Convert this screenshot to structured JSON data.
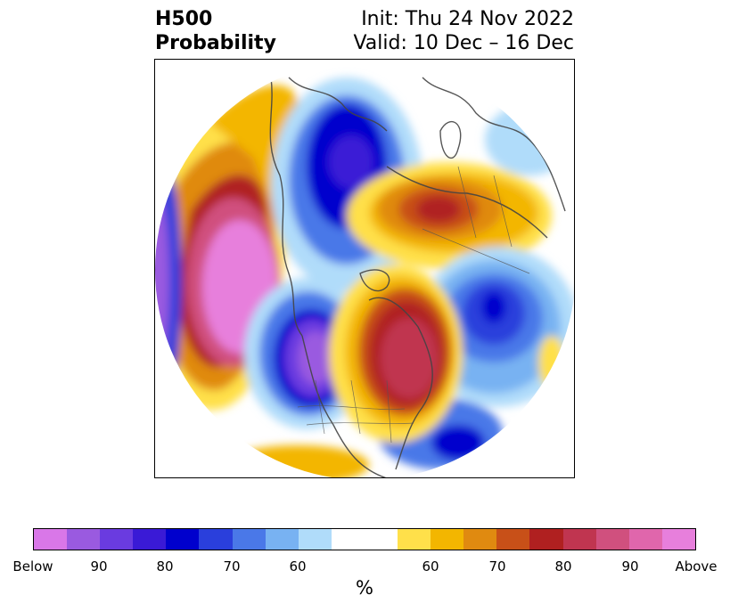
{
  "title": {
    "left_line1": "H500",
    "left_line2": "Probability",
    "right_line1": "Init: Thu 24 Nov 2022",
    "right_line2": "Valid: 10 Dec – 16 Dec"
  },
  "colorbar": {
    "colors": [
      "#d977e8",
      "#9a5ae0",
      "#6a3be0",
      "#3a1ad6",
      "#0000cd",
      "#2a3fdc",
      "#4a78e8",
      "#78b2f2",
      "#b0dcfa",
      "#ffffff",
      "#ffe04a",
      "#f3b600",
      "#e08a10",
      "#c85018",
      "#b02020",
      "#c03550",
      "#d0507e",
      "#e066ac",
      "#e77fdc"
    ],
    "tick_labels": [
      "Below",
      "90",
      "80",
      "70",
      "60",
      "60",
      "70",
      "80",
      "90",
      "Above"
    ],
    "unit_label": "%"
  },
  "map": {
    "projection": "north-polar-orthographic",
    "features": [
      "coastlines",
      "country-borders",
      "state-borders"
    ],
    "anomalies": [
      {
        "region": "northeast-pacific",
        "sign": "above",
        "peak": "Above"
      },
      {
        "region": "western-north-america",
        "sign": "below",
        "peak": "90"
      },
      {
        "region": "eastern-north-america",
        "sign": "above",
        "peak": "90"
      },
      {
        "region": "arctic-canada-greenland",
        "sign": "below",
        "peak": "80"
      },
      {
        "region": "north-atlantic",
        "sign": "below",
        "peak": "80"
      },
      {
        "region": "northern-eurasia",
        "sign": "above",
        "peak": "80"
      }
    ]
  }
}
